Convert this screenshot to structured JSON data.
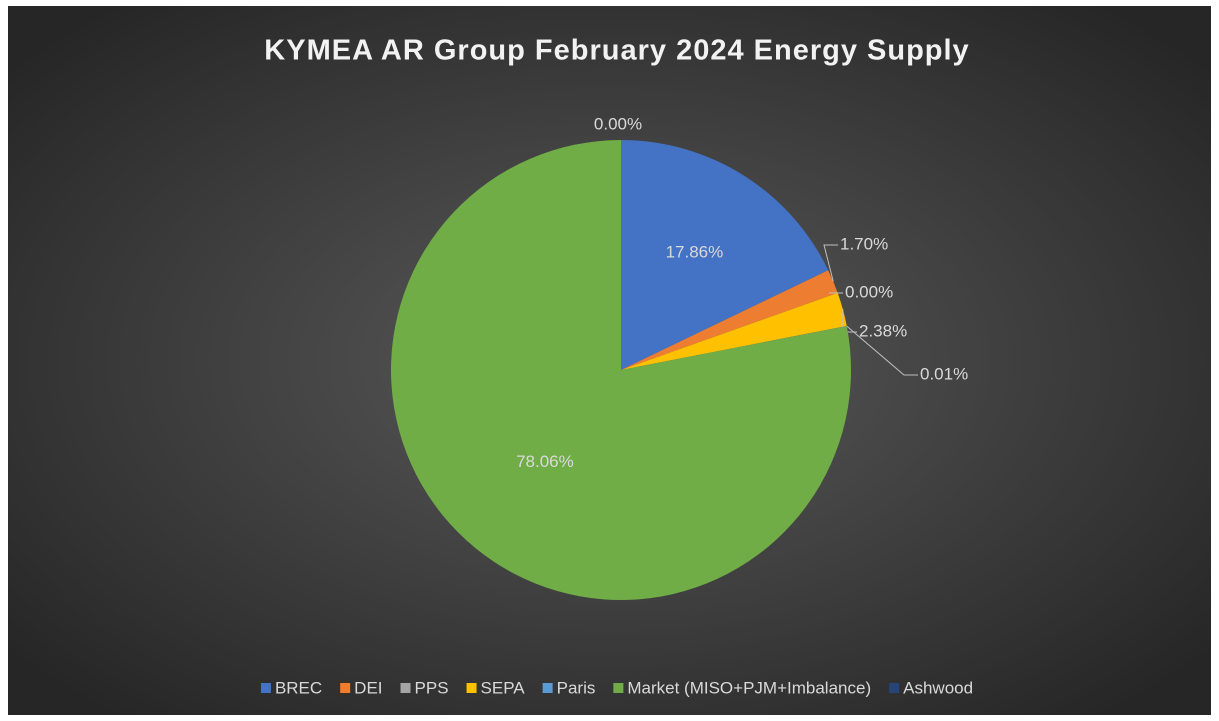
{
  "chart_data": {
    "type": "pie",
    "title": "KYMEA AR Group February 2024 Energy Supply",
    "categories": [
      "BREC",
      "DEI",
      "PPS",
      "SEPA",
      "Paris",
      "Market (MISO+PJM+Imbalance)",
      "Ashwood"
    ],
    "values": [
      17.86,
      1.7,
      0.0,
      2.38,
      0.01,
      78.06,
      0.0
    ],
    "value_labels": [
      "17.86%",
      "1.70%",
      "0.00%",
      "2.38%",
      "0.01%",
      "78.06%",
      "0.00%"
    ],
    "colors": [
      "#4472c4",
      "#ed7d31",
      "#a5a5a5",
      "#ffc000",
      "#5b9bd5",
      "#70ad47",
      "#264478"
    ],
    "legend": "bottom"
  }
}
